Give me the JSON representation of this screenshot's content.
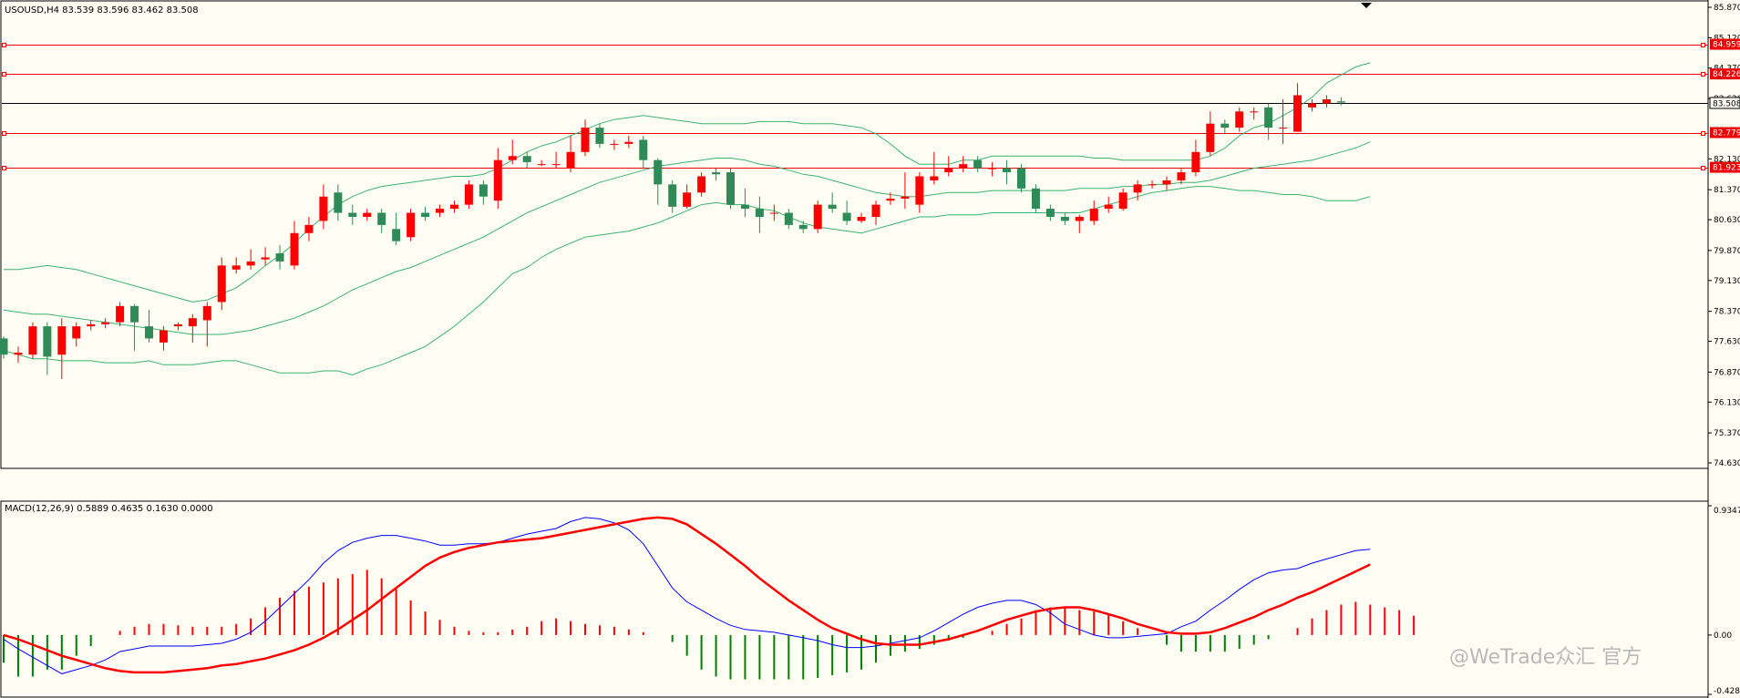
{
  "chart_data": [
    {
      "type": "candlestick",
      "title": "USOUSD,H4 83.539 83.596 83.462 83.508",
      "price_axis": {
        "min": 74.63,
        "max": 85.87,
        "ticks": [
          "85.870",
          "85.120",
          "84.370",
          "83.620",
          "82.130",
          "81.370",
          "80.630",
          "79.870",
          "79.130",
          "78.370",
          "77.630",
          "76.870",
          "76.130",
          "75.370",
          "74.630"
        ]
      },
      "current_price": "83.508",
      "horizontal_lines": [
        {
          "price": 84.959,
          "label": "84.959"
        },
        {
          "price": 84.226,
          "label": "84.226"
        },
        {
          "price": 82.779,
          "label": "82.779"
        },
        {
          "price": 81.923,
          "label": "81.923"
        }
      ],
      "candles": [
        [
          77.7,
          77.3,
          77.75,
          77.2
        ],
        [
          77.3,
          77.35,
          77.5,
          77.1
        ],
        [
          77.3,
          78.0,
          78.1,
          77.2
        ],
        [
          78.0,
          77.25,
          78.1,
          76.8
        ],
        [
          77.3,
          78.0,
          78.2,
          76.7
        ],
        [
          77.7,
          78.0,
          78.1,
          77.5
        ],
        [
          78.0,
          78.05,
          78.15,
          77.9
        ],
        [
          78.05,
          78.1,
          78.2,
          77.95
        ],
        [
          78.1,
          78.5,
          78.6,
          78.0
        ],
        [
          78.5,
          78.1,
          78.55,
          77.4
        ],
        [
          78.0,
          77.7,
          78.4,
          77.6
        ],
        [
          77.6,
          77.9,
          78.0,
          77.4
        ],
        [
          78.0,
          78.05,
          78.1,
          77.9
        ],
        [
          78.0,
          78.2,
          78.3,
          77.6
        ],
        [
          78.15,
          78.5,
          78.6,
          77.5
        ],
        [
          78.6,
          79.5,
          79.7,
          78.4
        ],
        [
          79.4,
          79.5,
          79.7,
          79.3
        ],
        [
          79.5,
          79.6,
          79.9,
          79.4
        ],
        [
          79.65,
          79.7,
          79.95,
          79.5
        ],
        [
          79.8,
          79.6,
          80.0,
          79.4
        ],
        [
          79.5,
          80.3,
          80.6,
          79.4
        ],
        [
          80.3,
          80.5,
          80.7,
          80.1
        ],
        [
          80.6,
          81.2,
          81.5,
          80.4
        ],
        [
          81.3,
          80.8,
          81.5,
          80.6
        ],
        [
          80.8,
          80.7,
          81.0,
          80.5
        ],
        [
          80.7,
          80.8,
          80.9,
          80.6
        ],
        [
          80.8,
          80.5,
          80.9,
          80.3
        ],
        [
          80.4,
          80.1,
          80.8,
          80.0
        ],
        [
          80.2,
          80.8,
          80.9,
          80.1
        ],
        [
          80.8,
          80.7,
          80.95,
          80.6
        ],
        [
          80.8,
          80.9,
          81.0,
          80.7
        ],
        [
          80.9,
          81.0,
          81.1,
          80.8
        ],
        [
          81.0,
          81.5,
          81.6,
          80.9
        ],
        [
          81.5,
          81.2,
          81.6,
          81.0
        ],
        [
          81.1,
          82.1,
          82.4,
          80.9
        ],
        [
          82.1,
          82.2,
          82.6,
          82.0
        ],
        [
          82.2,
          82.05,
          82.3,
          81.9
        ],
        [
          82.0,
          82.0,
          82.1,
          81.95
        ],
        [
          82.0,
          82.0,
          82.3,
          81.9
        ],
        [
          81.9,
          82.3,
          82.7,
          81.8
        ],
        [
          82.3,
          82.9,
          83.1,
          82.2
        ],
        [
          82.9,
          82.5,
          83.0,
          82.4
        ],
        [
          82.5,
          82.5,
          82.6,
          82.35
        ],
        [
          82.5,
          82.55,
          82.7,
          82.4
        ],
        [
          82.6,
          82.1,
          82.7,
          81.9
        ],
        [
          82.1,
          81.5,
          82.15,
          81.0
        ],
        [
          81.5,
          80.95,
          81.6,
          80.8
        ],
        [
          80.95,
          81.3,
          81.5,
          80.9
        ],
        [
          81.3,
          81.7,
          81.8,
          81.2
        ],
        [
          81.8,
          81.75,
          81.9,
          81.6
        ],
        [
          81.8,
          81.0,
          81.9,
          80.9
        ],
        [
          81.0,
          80.9,
          81.4,
          80.7
        ],
        [
          80.9,
          80.7,
          81.2,
          80.3
        ],
        [
          80.8,
          80.8,
          81.0,
          80.6
        ],
        [
          80.8,
          80.5,
          80.9,
          80.4
        ],
        [
          80.5,
          80.4,
          80.6,
          80.3
        ],
        [
          80.4,
          81.0,
          81.1,
          80.3
        ],
        [
          81.0,
          80.9,
          81.3,
          80.8
        ],
        [
          80.8,
          80.6,
          81.1,
          80.5
        ],
        [
          80.6,
          80.7,
          80.8,
          80.55
        ],
        [
          80.7,
          81.0,
          81.1,
          80.5
        ],
        [
          81.1,
          81.15,
          81.3,
          81.0
        ],
        [
          81.15,
          81.2,
          81.8,
          80.9
        ],
        [
          81.0,
          81.7,
          81.8,
          80.8
        ],
        [
          81.6,
          81.7,
          82.3,
          81.5
        ],
        [
          81.8,
          81.9,
          82.2,
          81.7
        ],
        [
          81.9,
          82.0,
          82.2,
          81.8
        ],
        [
          82.1,
          81.9,
          82.2,
          81.8
        ],
        [
          81.9,
          81.9,
          82.05,
          81.7
        ],
        [
          81.9,
          81.8,
          82.1,
          81.5
        ],
        [
          81.9,
          81.4,
          82.0,
          81.3
        ],
        [
          81.4,
          80.9,
          81.5,
          80.8
        ],
        [
          80.9,
          80.7,
          81.0,
          80.6
        ],
        [
          80.7,
          80.6,
          80.8,
          80.5
        ],
        [
          80.6,
          80.7,
          80.75,
          80.3
        ],
        [
          80.6,
          80.9,
          81.1,
          80.5
        ],
        [
          80.9,
          81.0,
          81.2,
          80.8
        ],
        [
          80.9,
          81.3,
          81.4,
          80.85
        ],
        [
          81.3,
          81.5,
          81.6,
          81.1
        ],
        [
          81.5,
          81.5,
          81.6,
          81.4
        ],
        [
          81.5,
          81.6,
          81.7,
          81.35
        ],
        [
          81.6,
          81.8,
          81.9,
          81.5
        ],
        [
          81.8,
          82.3,
          82.6,
          81.7
        ],
        [
          82.3,
          83.0,
          83.3,
          82.2
        ],
        [
          83.0,
          82.9,
          83.1,
          82.75
        ],
        [
          82.9,
          83.3,
          83.4,
          82.8
        ],
        [
          83.3,
          83.3,
          83.4,
          83.1
        ],
        [
          83.4,
          82.9,
          83.5,
          82.6
        ],
        [
          82.9,
          82.9,
          83.6,
          82.5
        ],
        [
          82.8,
          83.7,
          84.0,
          82.8
        ],
        [
          83.4,
          83.5,
          83.6,
          83.3
        ],
        [
          83.5,
          83.6,
          83.7,
          83.4
        ],
        [
          83.55,
          83.52,
          83.65,
          83.45
        ]
      ],
      "bollinger": {
        "upper": [
          79.4,
          79.4,
          79.45,
          79.5,
          79.45,
          79.4,
          79.3,
          79.2,
          79.1,
          79.0,
          78.9,
          78.8,
          78.7,
          78.6,
          78.65,
          78.8,
          78.95,
          79.2,
          79.5,
          79.75,
          80.05,
          80.4,
          80.7,
          81.0,
          81.2,
          81.35,
          81.45,
          81.5,
          81.55,
          81.6,
          81.65,
          81.7,
          81.7,
          81.75,
          81.9,
          82.1,
          82.3,
          82.45,
          82.55,
          82.7,
          82.85,
          83.0,
          83.1,
          83.15,
          83.2,
          83.15,
          83.1,
          83.05,
          83.0,
          83.0,
          83.0,
          83.0,
          83.05,
          83.05,
          83.05,
          83.0,
          83.0,
          83.0,
          82.95,
          82.9,
          82.75,
          82.5,
          82.2,
          82.0,
          82.0,
          82.0,
          82.1,
          82.1,
          82.2,
          82.2,
          82.2,
          82.2,
          82.2,
          82.2,
          82.2,
          82.15,
          82.15,
          82.1,
          82.1,
          82.1,
          82.1,
          82.1,
          82.1,
          82.2,
          82.4,
          82.7,
          82.9,
          83.0,
          83.2,
          83.4,
          83.65,
          84.0,
          84.2,
          84.4,
          84.5
        ],
        "middle": [
          78.4,
          78.35,
          78.3,
          78.3,
          78.25,
          78.2,
          78.15,
          78.1,
          78.05,
          78.0,
          77.95,
          77.9,
          77.85,
          77.8,
          77.8,
          77.8,
          77.85,
          77.9,
          78.0,
          78.1,
          78.2,
          78.35,
          78.5,
          78.7,
          78.9,
          79.05,
          79.2,
          79.35,
          79.45,
          79.6,
          79.75,
          79.9,
          80.05,
          80.2,
          80.4,
          80.6,
          80.8,
          80.95,
          81.1,
          81.25,
          81.4,
          81.55,
          81.65,
          81.75,
          81.85,
          81.95,
          82.0,
          82.05,
          82.1,
          82.15,
          82.15,
          82.1,
          82.0,
          81.95,
          81.85,
          81.75,
          81.7,
          81.6,
          81.5,
          81.4,
          81.3,
          81.25,
          81.2,
          81.2,
          81.25,
          81.3,
          81.3,
          81.3,
          81.35,
          81.35,
          81.35,
          81.35,
          81.35,
          81.35,
          81.4,
          81.4,
          81.4,
          81.45,
          81.45,
          81.5,
          81.5,
          81.55,
          81.55,
          81.6,
          81.7,
          81.8,
          81.9,
          81.95,
          82.0,
          82.05,
          82.1,
          82.2,
          82.3,
          82.4,
          82.55
        ],
        "lower": [
          77.4,
          77.3,
          77.2,
          77.2,
          77.15,
          77.15,
          77.15,
          77.1,
          77.1,
          77.1,
          77.15,
          77.05,
          77.05,
          77.05,
          77.1,
          77.15,
          77.15,
          77.05,
          76.95,
          76.85,
          76.85,
          76.85,
          76.9,
          76.9,
          76.8,
          76.95,
          77.05,
          77.2,
          77.35,
          77.5,
          77.75,
          78.0,
          78.3,
          78.6,
          78.95,
          79.3,
          79.45,
          79.7,
          79.9,
          80.05,
          80.2,
          80.25,
          80.3,
          80.35,
          80.45,
          80.55,
          80.7,
          80.85,
          81.0,
          81.05,
          81.0,
          81.0,
          80.9,
          80.85,
          80.7,
          80.55,
          80.45,
          80.4,
          80.35,
          80.3,
          80.4,
          80.5,
          80.6,
          80.7,
          80.7,
          80.75,
          80.75,
          80.75,
          80.8,
          80.8,
          80.8,
          80.8,
          80.8,
          80.8,
          80.8,
          80.9,
          81.0,
          81.1,
          81.2,
          81.3,
          81.35,
          81.4,
          81.45,
          81.45,
          81.4,
          81.35,
          81.35,
          81.3,
          81.25,
          81.25,
          81.2,
          81.1,
          81.1,
          81.1,
          81.2
        ]
      }
    },
    {
      "type": "macd",
      "title": "MACD(12,26,9) 0.5889 0.4635 0.1630 0.0000",
      "axis": {
        "min": -0.4288,
        "max": 0.9347,
        "ticks": [
          "0.9347",
          "0.00",
          "-0.4288"
        ]
      },
      "histogram": [
        -0.2,
        -0.3,
        -0.3,
        -0.25,
        -0.25,
        -0.15,
        -0.08,
        0.0,
        0.03,
        0.06,
        0.08,
        0.08,
        0.07,
        0.06,
        0.06,
        0.06,
        0.08,
        0.12,
        0.2,
        0.27,
        0.32,
        0.35,
        0.38,
        0.41,
        0.44,
        0.47,
        0.41,
        0.33,
        0.25,
        0.17,
        0.11,
        0.06,
        0.03,
        0.02,
        0.02,
        0.04,
        0.06,
        0.1,
        0.12,
        0.1,
        0.08,
        0.07,
        0.06,
        0.04,
        0.02,
        0.0,
        -0.05,
        -0.15,
        -0.25,
        -0.3,
        -0.32,
        -0.32,
        -0.32,
        -0.32,
        -0.32,
        -0.32,
        -0.31,
        -0.29,
        -0.27,
        -0.25,
        -0.2,
        -0.15,
        -0.12,
        -0.1,
        -0.07,
        -0.04,
        -0.02,
        0.0,
        0.03,
        0.08,
        0.12,
        0.18,
        0.2,
        0.2,
        0.18,
        0.17,
        0.15,
        0.1,
        0.05,
        0.0,
        -0.07,
        -0.12,
        -0.12,
        -0.12,
        -0.12,
        -0.1,
        -0.07,
        -0.03,
        0.0,
        0.05,
        0.12,
        0.18,
        0.22,
        0.24,
        0.22,
        0.2,
        0.18,
        0.14
      ],
      "macd_line": [
        -0.03,
        -0.1,
        -0.16,
        -0.22,
        -0.28,
        -0.25,
        -0.22,
        -0.18,
        -0.12,
        -0.1,
        -0.08,
        -0.08,
        -0.08,
        -0.08,
        -0.07,
        -0.06,
        -0.03,
        0.02,
        0.1,
        0.2,
        0.3,
        0.4,
        0.52,
        0.61,
        0.67,
        0.7,
        0.72,
        0.72,
        0.7,
        0.68,
        0.65,
        0.65,
        0.66,
        0.66,
        0.67,
        0.7,
        0.73,
        0.75,
        0.77,
        0.82,
        0.85,
        0.84,
        0.81,
        0.76,
        0.66,
        0.5,
        0.34,
        0.24,
        0.18,
        0.12,
        0.07,
        0.04,
        0.03,
        0.02,
        0.0,
        -0.02,
        -0.04,
        -0.07,
        -0.09,
        -0.09,
        -0.08,
        -0.06,
        -0.04,
        -0.02,
        0.03,
        0.09,
        0.15,
        0.2,
        0.23,
        0.25,
        0.25,
        0.22,
        0.16,
        0.08,
        0.04,
        0.0,
        -0.02,
        -0.02,
        -0.01,
        0.0,
        0.01,
        0.06,
        0.1,
        0.18,
        0.25,
        0.33,
        0.4,
        0.45,
        0.47,
        0.48,
        0.52,
        0.55,
        0.58,
        0.61,
        0.62
      ],
      "signal_line": [
        0.0,
        -0.03,
        -0.07,
        -0.11,
        -0.15,
        -0.18,
        -0.21,
        -0.24,
        -0.26,
        -0.27,
        -0.27,
        -0.27,
        -0.26,
        -0.25,
        -0.24,
        -0.22,
        -0.21,
        -0.19,
        -0.17,
        -0.14,
        -0.11,
        -0.07,
        -0.02,
        0.04,
        0.11,
        0.18,
        0.26,
        0.34,
        0.42,
        0.5,
        0.56,
        0.6,
        0.63,
        0.65,
        0.67,
        0.68,
        0.69,
        0.7,
        0.72,
        0.74,
        0.76,
        0.78,
        0.8,
        0.82,
        0.84,
        0.85,
        0.84,
        0.8,
        0.73,
        0.66,
        0.58,
        0.5,
        0.41,
        0.33,
        0.25,
        0.18,
        0.11,
        0.05,
        0.01,
        -0.03,
        -0.06,
        -0.07,
        -0.07,
        -0.07,
        -0.05,
        -0.03,
        0.0,
        0.03,
        0.07,
        0.11,
        0.14,
        0.17,
        0.19,
        0.2,
        0.2,
        0.18,
        0.15,
        0.12,
        0.08,
        0.05,
        0.02,
        0.01,
        0.01,
        0.02,
        0.05,
        0.09,
        0.13,
        0.18,
        0.22,
        0.27,
        0.31,
        0.36,
        0.41,
        0.46,
        0.51
      ]
    }
  ],
  "watermark": "@WeTrade众汇 官方"
}
